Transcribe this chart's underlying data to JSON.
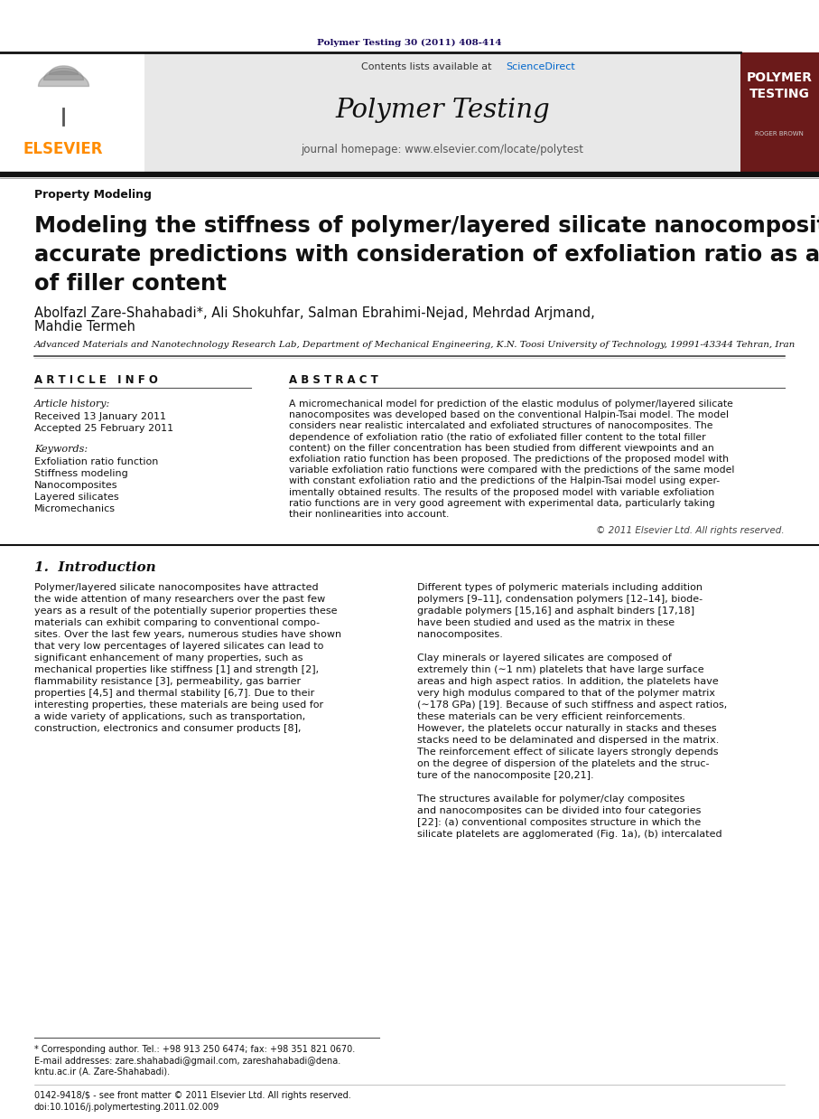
{
  "journal_ref": "Polymer Testing 30 (2011) 408-414",
  "journal_ref_color": "#1a0a5e",
  "header_bg": "#e8e8e8",
  "sidebar_color": "#6b1a1a",
  "elsevier_color": "#ff8c00",
  "elsevier_text": "ELSEVIER",
  "contents_text": "Contents lists available at ScienceDirect",
  "sciencedirect_color": "#0066cc",
  "journal_title": "Polymer Testing",
  "journal_homepage": "journal homepage: www.elsevier.com/locate/polytest",
  "section_label": "Property Modeling",
  "article_info_title": "A R T I C L E   I N F O",
  "article_history_title": "Article history:",
  "received": "Received 13 January 2011",
  "accepted": "Accepted 25 February 2011",
  "keywords_title": "Keywords:",
  "keywords": [
    "Exfoliation ratio function",
    "Stiffness modeling",
    "Nanocomposites",
    "Layered silicates",
    "Micromechanics"
  ],
  "abstract_title": "A B S T R A C T",
  "abstract_lines": [
    "A micromechanical model for prediction of the elastic modulus of polymer/layered silicate",
    "nanocomposites was developed based on the conventional Halpin-Tsai model. The model",
    "considers near realistic intercalated and exfoliated structures of nanocomposites. The",
    "dependence of exfoliation ratio (the ratio of exfoliated filler content to the total filler",
    "content) on the filler concentration has been studied from different viewpoints and an",
    "exfoliation ratio function has been proposed. The predictions of the proposed model with",
    "variable exfoliation ratio functions were compared with the predictions of the same model",
    "with constant exfoliation ratio and the predictions of the Halpin-Tsai model using exper-",
    "imentally obtained results. The results of the proposed model with variable exfoliation",
    "ratio functions are in very good agreement with experimental data, particularly taking",
    "their nonlinearities into account."
  ],
  "copyright_text": "© 2011 Elsevier Ltd. All rights reserved.",
  "intro_title": "1.  Introduction",
  "col1_lines": [
    "Polymer/layered silicate nanocomposites have attracted",
    "the wide attention of many researchers over the past few",
    "years as a result of the potentially superior properties these",
    "materials can exhibit comparing to conventional compo-",
    "sites. Over the last few years, numerous studies have shown",
    "that very low percentages of layered silicates can lead to",
    "significant enhancement of many properties, such as",
    "mechanical properties like stiffness [1] and strength [2],",
    "flammability resistance [3], permeability, gas barrier",
    "properties [4,5] and thermal stability [6,7]. Due to their",
    "interesting properties, these materials are being used for",
    "a wide variety of applications, such as transportation,",
    "construction, electronics and consumer products [8],"
  ],
  "col2_lines": [
    "Different types of polymeric materials including addition",
    "polymers [9–11], condensation polymers [12–14], biode-",
    "gradable polymers [15,16] and asphalt binders [17,18]",
    "have been studied and used as the matrix in these",
    "nanocomposites.",
    "",
    "Clay minerals or layered silicates are composed of",
    "extremely thin (∼1 nm) platelets that have large surface",
    "areas and high aspect ratios. In addition, the platelets have",
    "very high modulus compared to that of the polymer matrix",
    "(∼178 GPa) [19]. Because of such stiffness and aspect ratios,",
    "these materials can be very efficient reinforcements.",
    "However, the platelets occur naturally in stacks and theses",
    "stacks need to be delaminated and dispersed in the matrix.",
    "The reinforcement effect of silicate layers strongly depends",
    "on the degree of dispersion of the platelets and the struc-",
    "ture of the nanocomposite [20,21].",
    "",
    "The structures available for polymer/clay composites",
    "and nanocomposites can be divided into four categories",
    "[22]: (a) conventional composites structure in which the",
    "silicate platelets are agglomerated (Fig. 1a), (b) intercalated"
  ],
  "footnote1": "* Corresponding author. Tel.: +98 913 250 6474; fax: +98 351 821 0670.",
  "footnote2a": "E-mail addresses: zare.shahabadi@gmail.com, zareshahabadi@dena.",
  "footnote2b": "kntu.ac.ir (A. Zare-Shahabadi).",
  "footnote3": "0142-9418/$ - see front matter © 2011 Elsevier Ltd. All rights reserved.",
  "footnote4": "doi:10.1016/j.polymertesting.2011.02.009",
  "affiliation": "Advanced Materials and Nanotechnology Research Lab, Department of Mechanical Engineering, K.N. Toosi University of Technology, 19991-43344 Tehran, Iran",
  "page_bg": "#ffffff"
}
